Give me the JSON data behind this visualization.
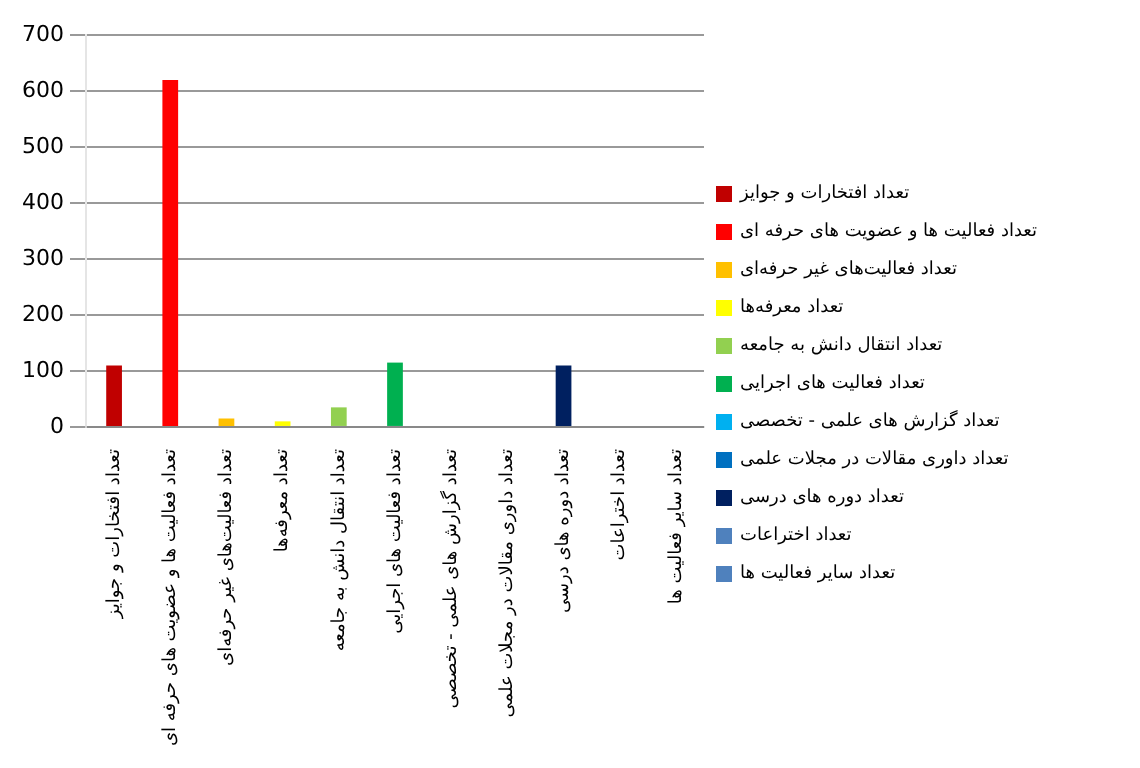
{
  "chart_data": {
    "type": "bar",
    "categories": [
      "تعداد افتخارات و جوایز",
      "تعداد فعالیت ها و عضویت های حرفه ای",
      "تعداد فعالیت‌های غیر حرفه‌ای",
      "تعداد معرفه‌ها",
      "تعداد انتقال دانش به جامعه",
      "تعداد فعالیت های اجرایی",
      "تعداد گزارش های علمی - تخصصی",
      "تعداد داوری مقالات در مجلات علمی",
      "تعداد دوره های درسی",
      "تعداد اختراعات",
      "تعداد سایر فعالیت ها"
    ],
    "series": [
      {
        "name": "تعداد افتخارات و جوایز",
        "color": "#c00000",
        "values": [
          110,
          null,
          null,
          null,
          null,
          null,
          null,
          null,
          null,
          null,
          null
        ]
      },
      {
        "name": "تعداد فعالیت ها و عضویت های حرفه ای",
        "color": "#ff0000",
        "values": [
          null,
          620,
          null,
          null,
          null,
          null,
          null,
          null,
          null,
          null,
          null
        ]
      },
      {
        "name": "تعداد فعالیت‌های غیر حرفه‌ای",
        "color": "#ffc000",
        "values": [
          null,
          null,
          15,
          null,
          null,
          null,
          null,
          null,
          null,
          null,
          null
        ]
      },
      {
        "name": "تعداد معرفه‌ها",
        "color": "#ffff00",
        "values": [
          null,
          null,
          null,
          10,
          null,
          null,
          null,
          null,
          null,
          null,
          null
        ]
      },
      {
        "name": "تعداد انتقال دانش به جامعه",
        "color": "#92d050",
        "values": [
          null,
          null,
          null,
          null,
          35,
          null,
          null,
          null,
          null,
          null,
          null
        ]
      },
      {
        "name": "تعداد فعالیت های اجرایی",
        "color": "#00b050",
        "values": [
          null,
          null,
          null,
          null,
          null,
          115,
          null,
          null,
          null,
          null,
          null
        ]
      },
      {
        "name": "تعداد گزارش های علمی - تخصصی",
        "color": "#00b0f0",
        "values": [
          null,
          null,
          null,
          null,
          null,
          null,
          0,
          null,
          null,
          null,
          null
        ]
      },
      {
        "name": "تعداد داوری مقالات در مجلات علمی",
        "color": "#0070c0",
        "values": [
          null,
          null,
          null,
          null,
          null,
          null,
          null,
          0,
          null,
          null,
          null
        ]
      },
      {
        "name": "تعداد دوره های درسی",
        "color": "#002060",
        "values": [
          null,
          null,
          null,
          null,
          null,
          null,
          null,
          null,
          110,
          null,
          null
        ]
      },
      {
        "name": "تعداد اختراعات",
        "color": "#4f81bd",
        "values": [
          null,
          null,
          null,
          null,
          null,
          null,
          null,
          null,
          null,
          0,
          null
        ]
      },
      {
        "name": "تعداد سایر فعالیت ها",
        "color": "#4f81bd",
        "values": [
          null,
          null,
          null,
          null,
          null,
          null,
          null,
          null,
          null,
          null,
          0
        ]
      }
    ],
    "ylim": [
      0,
      700
    ],
    "yticks": [
      0,
      100,
      200,
      300,
      400,
      500,
      600,
      700
    ],
    "grid": "y",
    "legend": "right"
  }
}
